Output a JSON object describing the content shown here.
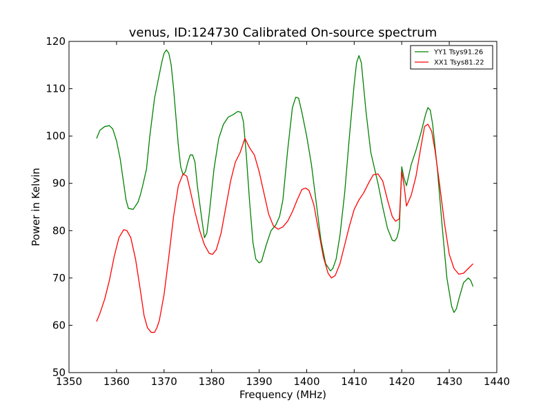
{
  "chart_data": {
    "type": "line",
    "title": "venus, ID:124730 Calibrated On-source spectrum",
    "xlabel": "Frequency (MHz)",
    "ylabel": "Power in Kelvin",
    "xlim": [
      1350,
      1440
    ],
    "ylim": [
      50,
      120
    ],
    "xticks": [
      1350,
      1360,
      1370,
      1380,
      1390,
      1400,
      1410,
      1420,
      1430,
      1440
    ],
    "yticks": [
      50,
      60,
      70,
      80,
      90,
      100,
      110,
      120
    ],
    "grid": false,
    "legend": {
      "position": "top-right"
    },
    "series": [
      {
        "name": "YY1 Tsys91.26",
        "color": "#008000",
        "x": [
          1355.8,
          1356.5,
          1357.5,
          1358.5,
          1359.2,
          1360.0,
          1360.8,
          1361.5,
          1362.0,
          1362.5,
          1363.5,
          1364.5,
          1365.0,
          1365.5,
          1366.3,
          1367.0,
          1368.0,
          1369.0,
          1369.5,
          1370.0,
          1370.5,
          1371.0,
          1371.5,
          1372.0,
          1372.5,
          1373.0,
          1373.5,
          1374.0,
          1374.5,
          1375.0,
          1375.5,
          1376.0,
          1376.5,
          1377.0,
          1378.0,
          1378.5,
          1379.0,
          1379.5,
          1380.5,
          1381.5,
          1382.5,
          1383.5,
          1384.5,
          1385.5,
          1386.2,
          1386.7,
          1387.3,
          1388.0,
          1388.7,
          1389.3,
          1390.0,
          1390.5,
          1391.5,
          1392.5,
          1393.5,
          1394.3,
          1395.0,
          1396.0,
          1397.0,
          1397.7,
          1398.3,
          1399.0,
          1400.0,
          1401.0,
          1402.0,
          1403.0,
          1404.0,
          1405.0,
          1405.5,
          1406.2,
          1407.0,
          1408.0,
          1409.0,
          1410.0,
          1410.5,
          1411.0,
          1411.5,
          1412.5,
          1413.5,
          1415.0,
          1416.0,
          1417.0,
          1418.0,
          1418.5,
          1419.0,
          1419.5,
          1420.0,
          1420.5,
          1421.0,
          1422.0,
          1423.0,
          1424.0,
          1425.0,
          1425.5,
          1426.0,
          1426.5,
          1427.5,
          1428.5,
          1429.5,
          1430.5,
          1431.0,
          1431.5,
          1432.0,
          1433.0,
          1434.0,
          1434.5,
          1435.0
        ],
        "y": [
          99.5,
          101.2,
          102.0,
          102.2,
          101.5,
          99.0,
          95.0,
          90.0,
          86.5,
          84.7,
          84.5,
          86.0,
          87.5,
          89.5,
          93.0,
          100.0,
          108.0,
          113.0,
          115.5,
          117.5,
          118.2,
          117.5,
          115.0,
          110.0,
          104.0,
          98.0,
          93.5,
          91.8,
          92.5,
          94.5,
          96.0,
          96.0,
          94.5,
          89.5,
          82.0,
          78.5,
          79.5,
          83.5,
          93.0,
          99.5,
          102.5,
          104.0,
          104.5,
          105.2,
          105.0,
          103.0,
          96.0,
          86.0,
          77.5,
          74.0,
          73.2,
          73.5,
          77.0,
          80.0,
          81.2,
          83.0,
          86.5,
          97.0,
          106.0,
          108.2,
          108.0,
          105.0,
          100.0,
          94.0,
          86.0,
          78.0,
          73.0,
          71.5,
          72.0,
          74.0,
          79.0,
          88.0,
          100.0,
          111.0,
          115.5,
          117.0,
          115.5,
          105.0,
          96.5,
          90.0,
          85.0,
          80.5,
          78.0,
          77.8,
          78.5,
          80.5,
          93.5,
          91.0,
          89.5,
          94.0,
          97.0,
          100.5,
          104.5,
          106.0,
          105.5,
          102.5,
          93.0,
          81.0,
          70.0,
          64.0,
          62.7,
          63.5,
          65.5,
          69.0,
          70.0,
          69.5,
          68.2
        ]
      },
      {
        "name": "XX1 Tsys81.22",
        "color": "#ff0000",
        "x": [
          1355.8,
          1356.5,
          1357.5,
          1358.5,
          1359.5,
          1360.5,
          1361.5,
          1362.2,
          1363.0,
          1364.0,
          1365.0,
          1365.8,
          1366.5,
          1367.3,
          1368.0,
          1368.5,
          1369.0,
          1370.0,
          1371.0,
          1372.0,
          1373.0,
          1374.0,
          1374.8,
          1375.5,
          1376.5,
          1377.5,
          1378.5,
          1379.5,
          1380.2,
          1381.0,
          1382.0,
          1383.0,
          1384.0,
          1385.0,
          1386.0,
          1386.5,
          1387.0,
          1387.5,
          1388.0,
          1389.0,
          1390.0,
          1391.0,
          1392.0,
          1393.0,
          1394.0,
          1395.0,
          1396.0,
          1397.0,
          1398.0,
          1399.0,
          1399.8,
          1400.5,
          1401.5,
          1402.5,
          1403.5,
          1404.5,
          1405.2,
          1406.0,
          1407.0,
          1408.0,
          1409.0,
          1410.0,
          1411.0,
          1412.0,
          1413.0,
          1414.0,
          1415.0,
          1416.0,
          1417.0,
          1418.0,
          1418.7,
          1419.5,
          1420.0,
          1420.5,
          1421.0,
          1422.0,
          1423.0,
          1424.0,
          1424.8,
          1425.5,
          1426.3,
          1427.0,
          1428.0,
          1429.0,
          1430.0,
          1431.0,
          1432.0,
          1433.0,
          1434.0,
          1435.0
        ],
        "y": [
          60.8,
          62.5,
          65.5,
          69.5,
          74.5,
          78.5,
          80.2,
          80.0,
          78.5,
          74.0,
          67.5,
          62.0,
          59.5,
          58.5,
          58.5,
          59.5,
          61.0,
          66.5,
          74.5,
          83.0,
          89.5,
          92.0,
          91.5,
          88.5,
          84.0,
          80.0,
          77.0,
          75.2,
          75.0,
          76.0,
          79.5,
          85.0,
          90.5,
          94.5,
          96.5,
          98.0,
          99.5,
          98.5,
          97.5,
          96.0,
          92.5,
          88.0,
          83.5,
          81.0,
          80.3,
          80.8,
          82.0,
          84.0,
          86.5,
          88.7,
          89.0,
          88.5,
          85.5,
          80.0,
          74.5,
          71.0,
          70.0,
          70.5,
          73.0,
          77.0,
          81.0,
          84.5,
          86.5,
          88.0,
          90.0,
          91.8,
          92.0,
          90.5,
          86.5,
          83.0,
          82.0,
          82.5,
          92.5,
          89.5,
          85.2,
          87.5,
          91.5,
          97.5,
          102.0,
          102.5,
          101.0,
          97.0,
          89.5,
          81.5,
          75.0,
          72.0,
          70.8,
          71.0,
          72.0,
          73.0
        ]
      }
    ]
  }
}
